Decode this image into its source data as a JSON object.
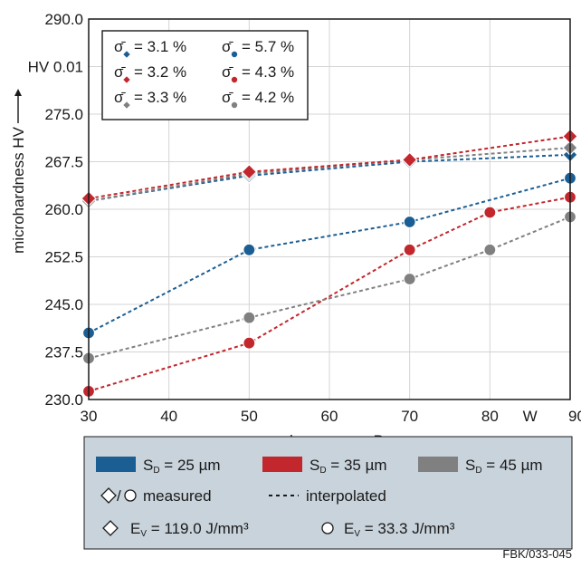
{
  "chart_data": {
    "type": "line",
    "xlabel": "laser power P",
    "x_unit": "W",
    "ylabel": "microhardness HV",
    "y_unit": "HV 0.01",
    "xlim": [
      30,
      90
    ],
    "ylim": [
      230.0,
      290.0
    ],
    "x_ticks": [
      30,
      40,
      50,
      60,
      70,
      80,
      90
    ],
    "y_ticks": [
      "230.0",
      "237.5",
      "245.0",
      "252.5",
      "260.0",
      "267.5",
      "275.0",
      "290.0"
    ],
    "grid": true,
    "series": [
      {
        "group": "S_D = 25 µm",
        "marker": "diamond",
        "color": "#1b5e93",
        "x": [
          30,
          50,
          70,
          90
        ],
        "y": [
          261.3,
          265.3,
          267.5,
          268.6
        ]
      },
      {
        "group": "S_D = 35 µm",
        "marker": "diamond",
        "color": "#c1272d",
        "x": [
          30,
          50,
          70,
          90
        ],
        "y": [
          261.7,
          265.9,
          267.8,
          271.5
        ]
      },
      {
        "group": "S_D = 45 µm",
        "marker": "diamond",
        "color": "#808080",
        "x": [
          30,
          50,
          70,
          90
        ],
        "y": [
          261.3,
          265.6,
          267.8,
          269.7
        ]
      },
      {
        "group": "S_D = 25 µm",
        "marker": "circle",
        "color": "#1b5e93",
        "x": [
          30,
          50,
          70,
          90
        ],
        "y": [
          240.5,
          253.6,
          258.0,
          264.9
        ]
      },
      {
        "group": "S_D = 35 µm",
        "marker": "circle",
        "color": "#c1272d",
        "x": [
          30,
          50,
          70,
          80,
          90
        ],
        "y": [
          231.3,
          238.9,
          253.6,
          259.5,
          261.9
        ]
      },
      {
        "group": "S_D = 45 µm",
        "marker": "circle",
        "color": "#808080",
        "x": [
          30,
          50,
          70,
          80,
          90
        ],
        "y": [
          236.5,
          242.9,
          249.0,
          253.6,
          258.8
        ]
      }
    ],
    "stats_box": {
      "symbol": "σ̄",
      "rows": [
        [
          {
            "marker": "diamond",
            "color": "#1b5e93",
            "text": "= 3.1 %"
          },
          {
            "marker": "circle",
            "color": "#1b5e93",
            "text": "= 5.7 %"
          }
        ],
        [
          {
            "marker": "diamond",
            "color": "#c1272d",
            "text": "= 3.2 %"
          },
          {
            "marker": "circle",
            "color": "#c1272d",
            "text": "= 4.3 %"
          }
        ],
        [
          {
            "marker": "diamond",
            "color": "#808080",
            "text": "= 3.3 %"
          },
          {
            "marker": "circle",
            "color": "#808080",
            "text": "= 4.2 %"
          }
        ]
      ]
    },
    "legend": {
      "placement": "bottom",
      "background": "#c8d3db",
      "groups": [
        {
          "label": "S",
          "sub": "D",
          "rest": " = 25 µm",
          "color": "#1b5e93"
        },
        {
          "label": "S",
          "sub": "D",
          "rest": " = 35 µm",
          "color": "#c1272d"
        },
        {
          "label": "S",
          "sub": "D",
          "rest": " = 45 µm",
          "color": "#808080"
        }
      ],
      "measured_label": "measured",
      "interpolated_label": "interpolated",
      "energy": [
        {
          "marker": "diamond",
          "label": "E",
          "sub": "V",
          "rest": " = 119.0 J/mm³"
        },
        {
          "marker": "circle",
          "label": "E",
          "sub": "V",
          "rest": " = 33.3 J/mm³"
        }
      ]
    }
  },
  "credit": "FBK/033-045"
}
